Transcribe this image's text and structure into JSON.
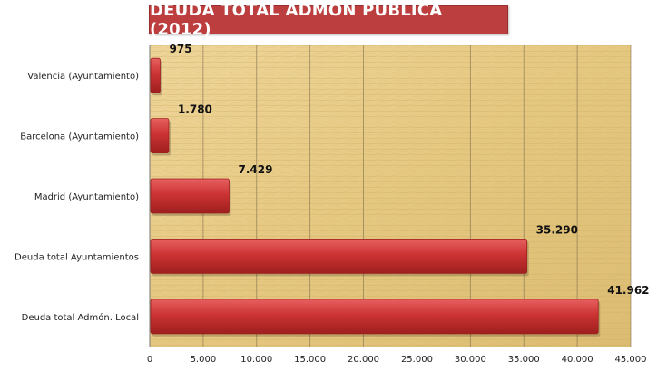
{
  "chart_data": {
    "type": "bar",
    "orientation": "horizontal",
    "title": "DEUDA TOTAL ADMÓN PÚBLICA (2012)",
    "categories": [
      "Valencia (Ayuntamiento)",
      "Barcelona (Ayuntamiento)",
      "Madrid (Ayuntamiento)",
      "Deuda total  Ayuntamientos",
      "Deuda total  Admón. Local"
    ],
    "values": [
      975,
      1780,
      7429,
      35290,
      41962
    ],
    "data_labels": [
      "975",
      "1.780",
      "7.429",
      "35.290",
      "41.962"
    ],
    "xlim": [
      0,
      45000
    ],
    "x_ticks": [
      0,
      5000,
      10000,
      15000,
      20000,
      25000,
      30000,
      35000,
      40000,
      45000
    ],
    "x_tick_labels": [
      "0",
      "5.000",
      "10.000",
      "15.000",
      "20.000",
      "25.000",
      "30.000",
      "35.000",
      "40.000",
      "45.000"
    ],
    "grid": true,
    "legend": "none",
    "colors": {
      "bar": "#cc3333",
      "bar_dark": "#9e1f1f",
      "title_bg": "#bd3e3e",
      "plot_bg": "#e9cf8a",
      "gridline": "#7a6a4a"
    }
  }
}
